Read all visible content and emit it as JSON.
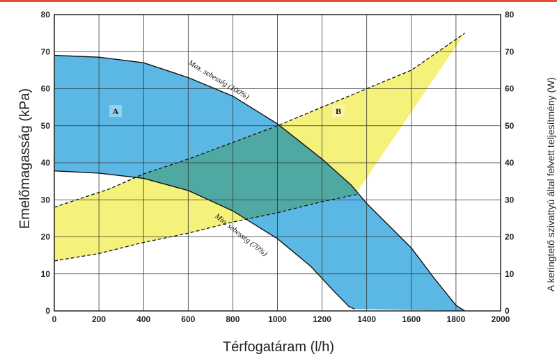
{
  "chart_data": {
    "type": "area",
    "xlabel": "Térfogatáram (l/h)",
    "ylabel_left": "Emelőmagasság (kPa)",
    "ylabel_right": "A keringtető szivattyú által felvett teljesítmény (W)",
    "xlim": [
      0,
      2000
    ],
    "ylim_left": [
      0,
      80
    ],
    "ylim_right": [
      0,
      80
    ],
    "x_ticks": [
      "0",
      "200",
      "400",
      "600",
      "800",
      "1000",
      "1200",
      "1400",
      "1600",
      "1800",
      "2000"
    ],
    "y_ticks_left": [
      "0",
      "10",
      "20",
      "30",
      "40",
      "50",
      "60",
      "70",
      "80"
    ],
    "y_ticks_right": [
      "0",
      "10",
      "20",
      "30",
      "40",
      "50",
      "60",
      "70",
      "80"
    ],
    "grid": true,
    "colors": {
      "region_a": "#5bb8e4",
      "region_b": "#f1ee55",
      "overlap": "#4fa9a2",
      "frame": "#222222",
      "grid": "#333333",
      "accent": "#e8502a"
    },
    "region_labels": {
      "a": "A",
      "b": "B"
    },
    "series": [
      {
        "name": "Max. sebesség (100%)",
        "axis": "left",
        "points": [
          [
            0,
            69
          ],
          [
            200,
            68.5
          ],
          [
            400,
            67
          ],
          [
            600,
            63
          ],
          [
            800,
            58
          ],
          [
            1000,
            50.5
          ],
          [
            1200,
            41
          ],
          [
            1330,
            34
          ],
          [
            1400,
            29
          ],
          [
            1500,
            23
          ],
          [
            1600,
            17
          ],
          [
            1700,
            9
          ],
          [
            1800,
            1.5
          ],
          [
            1840,
            0
          ]
        ]
      },
      {
        "name": "Min. sebesség (70%)",
        "axis": "left",
        "points": [
          [
            0,
            37.8
          ],
          [
            200,
            37.2
          ],
          [
            400,
            35.8
          ],
          [
            600,
            32.5
          ],
          [
            800,
            27
          ],
          [
            1000,
            19.5
          ],
          [
            1150,
            12
          ],
          [
            1250,
            5.5
          ],
          [
            1320,
            1.2
          ],
          [
            1345,
            0.5
          ]
        ]
      },
      {
        "name": "",
        "axis": "right",
        "style": "dashed",
        "points": [
          [
            0,
            28
          ],
          [
            250,
            33
          ],
          [
            400,
            37
          ],
          [
            600,
            41
          ],
          [
            800,
            45.5
          ],
          [
            1000,
            50
          ],
          [
            1200,
            55
          ],
          [
            1400,
            60
          ],
          [
            1600,
            65
          ],
          [
            1840,
            75
          ]
        ]
      },
      {
        "name": "",
        "axis": "right",
        "style": "dashed",
        "points": [
          [
            0,
            13.5
          ],
          [
            200,
            15.5
          ],
          [
            400,
            18.5
          ],
          [
            600,
            21
          ],
          [
            800,
            24
          ],
          [
            1000,
            26.5
          ],
          [
            1200,
            29.5
          ],
          [
            1360,
            31.5
          ]
        ]
      }
    ],
    "region_b_closure": [
      [
        1840,
        75
      ],
      [
        1350,
        31.5
      ]
    ],
    "region_a_closure": [
      [
        1345,
        0.5
      ],
      [
        1840,
        0
      ]
    ]
  }
}
